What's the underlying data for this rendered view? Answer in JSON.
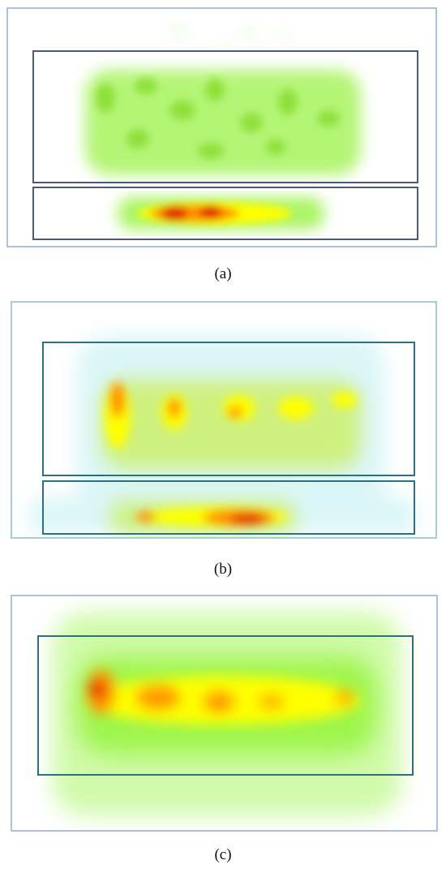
{
  "panels": [
    {
      "id": "a",
      "caption": "(a)",
      "frame_color": "#aebfe0",
      "box_color": "#4a5a78",
      "heat_colors": [
        "rgba(150,255,70,0)",
        "#9cf24a",
        "#ffff00",
        "#ff8c00",
        "#e00000"
      ]
    },
    {
      "id": "b",
      "caption": "(b)",
      "frame_color": "#a9cdd4",
      "box_color": "#2e6f80",
      "heat_colors": [
        "rgba(160,240,245,0)",
        "#bfeff3",
        "#ccf06a",
        "#ffff00",
        "#ff8c00",
        "#e00000"
      ]
    },
    {
      "id": "c",
      "caption": "(c)",
      "frame_color": "#aebfe0",
      "box_color": "#2e6f80",
      "heat_colors": [
        "rgba(150,255,70,0)",
        "#99f542",
        "#ffff00",
        "#ff9a00",
        "#e00000"
      ]
    }
  ]
}
